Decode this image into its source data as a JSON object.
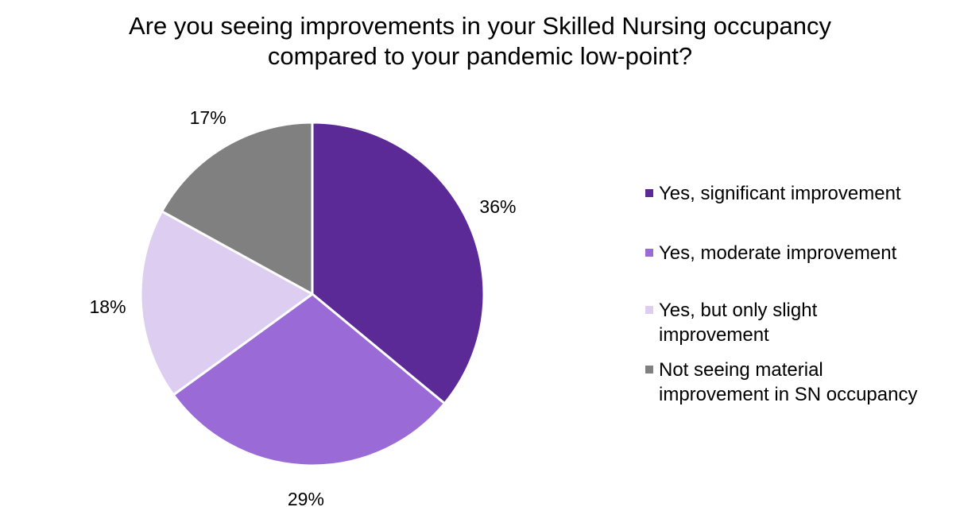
{
  "chart_data": {
    "type": "pie",
    "title_lines": [
      "Are you seeing improvements in your Skilled Nursing occupancy",
      "compared to your pandemic low-point?"
    ],
    "categories": [
      "Yes, significant improvement",
      "Yes, moderate improvement",
      "Yes, but only slight improvement",
      "Not seeing material improvement in SN occupancy"
    ],
    "values": [
      36,
      29,
      18,
      17
    ],
    "data_labels": [
      "36%",
      "29%",
      "18%",
      "17%"
    ],
    "colors": [
      "#5B2A96",
      "#9A6AD6",
      "#DDCDF0",
      "#808080"
    ],
    "start_angle_deg": 0,
    "direction": "clockwise",
    "legend_position": "right",
    "legend_lines": [
      [
        "Yes, significant improvement"
      ],
      [
        "Yes, moderate improvement"
      ],
      [
        "Yes, but only slight",
        "improvement"
      ],
      [
        "Not seeing material",
        "improvement in SN occupancy"
      ]
    ]
  }
}
